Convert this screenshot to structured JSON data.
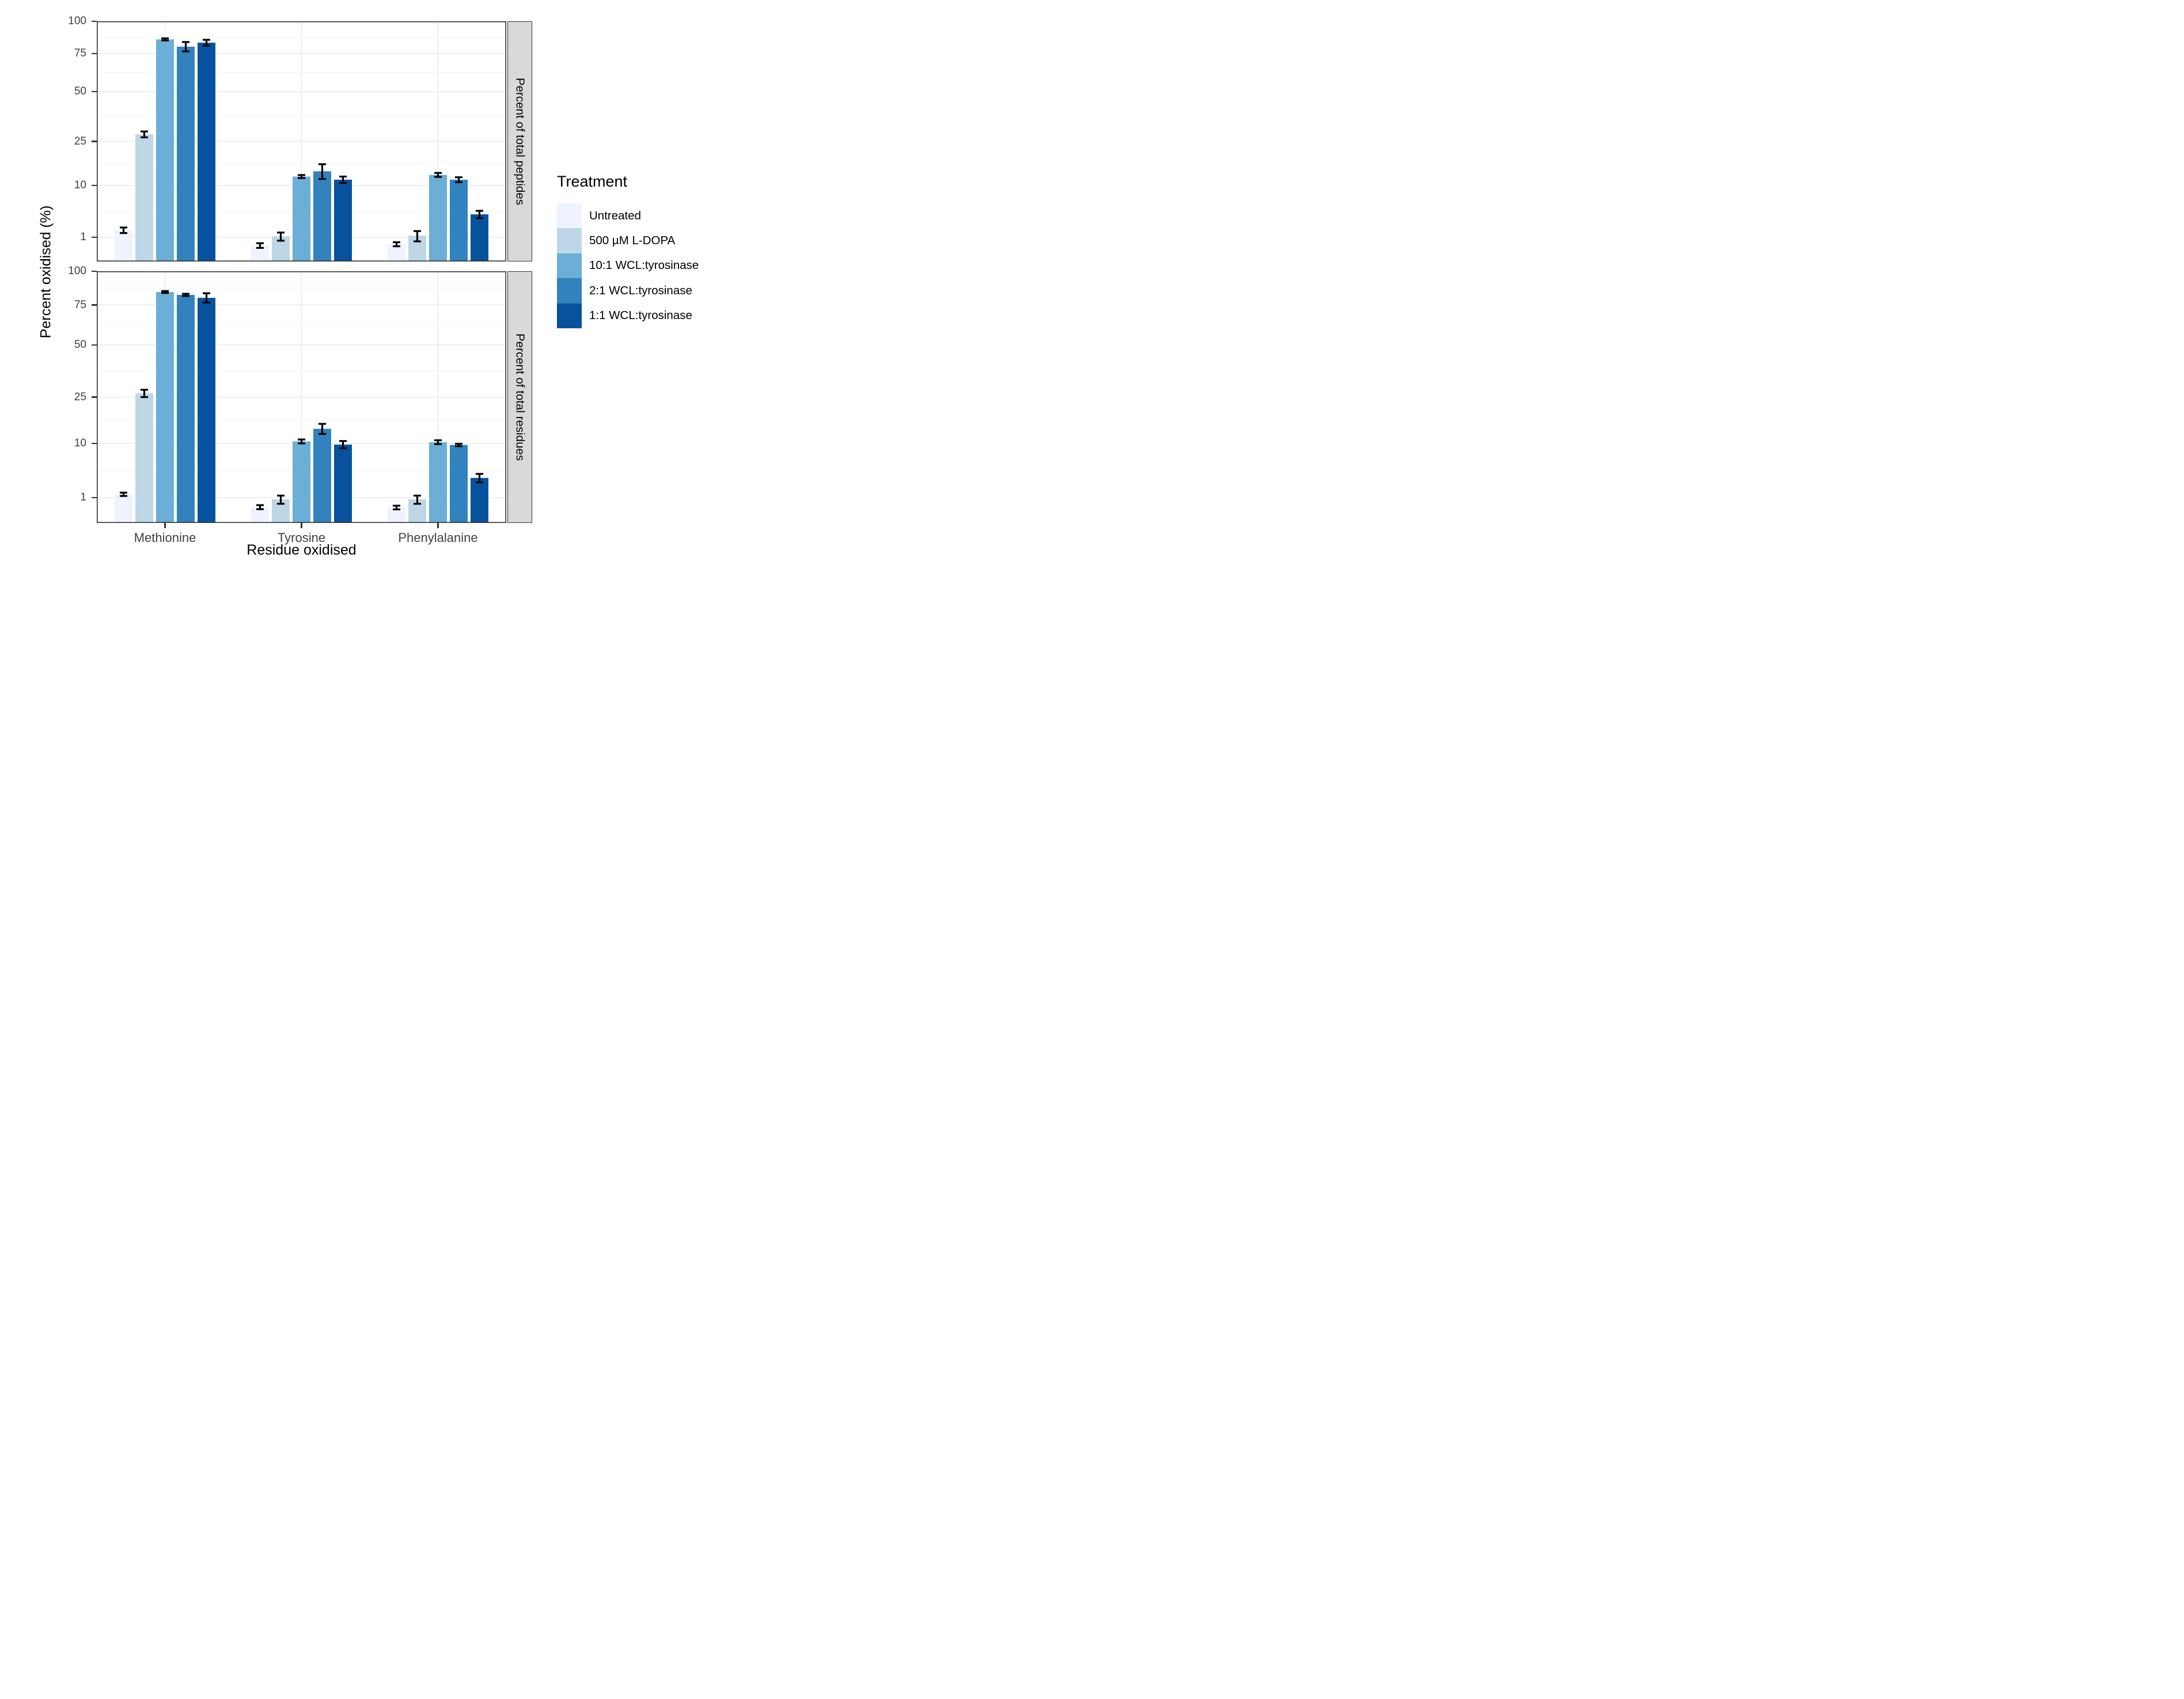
{
  "legend": {
    "title": "Treatment",
    "items": [
      {
        "label": "Untreated",
        "color": "#EFF3FF"
      },
      {
        "label": "500 µM L-DOPA",
        "color": "#BDD7E7"
      },
      {
        "label": "10:1 WCL:tyrosinase",
        "color": "#6BAED6"
      },
      {
        "label": "2:1 WCL:tyrosinase",
        "color": "#3182BD"
      },
      {
        "label": "1:1 WCL:tyrosinase",
        "color": "#08519C"
      }
    ]
  },
  "axes": {
    "x_title": "Residue oxidised",
    "y_title": "Percent oxidised (%)",
    "y_scale": "sqrt",
    "y_limits": [
      0,
      100
    ],
    "y_major_ticks": [
      100,
      75,
      50,
      25,
      10,
      1
    ],
    "y_minor_gridlines": [
      87.1,
      61.9,
      36.4,
      16.7,
      4.3
    ],
    "categories": [
      "Methionine",
      "Tyrosine",
      "Phenylalanine"
    ]
  },
  "style": {
    "grid_major_color": "#EBEBEB",
    "grid_minor_color": "#F4F4F4",
    "panel_border_color": "#333333",
    "strip_background": "#D9D9D9",
    "axis_text_color": "#404040",
    "error_bar_color": "#000000"
  },
  "chart_data": [
    {
      "type": "bar",
      "facet_label": "Percent of total peptides",
      "categories": [
        "Methionine",
        "Tyrosine",
        "Phenylalanine"
      ],
      "ylabel": "Percent oxidised (%)",
      "ylim": [
        0,
        100
      ],
      "series": [
        {
          "name": "Untreated",
          "values": [
            1.7,
            0.45,
            0.52
          ],
          "errors": [
            0.3,
            0.13,
            0.12
          ]
        },
        {
          "name": "500 µM L-DOPA",
          "values": [
            28,
            1.1,
            1.15
          ],
          "errors": [
            1.3,
            0.35,
            0.45
          ]
        },
        {
          "name": "10:1 WCL:tyrosinase",
          "values": [
            85.5,
            12.5,
            13.0
          ],
          "errors": [
            0.8,
            0.45,
            0.6
          ]
        },
        {
          "name": "2:1 WCL:tyrosinase",
          "values": [
            80.0,
            14.1,
            11.6
          ],
          "errors": [
            3.5,
            2.3,
            0.7
          ]
        },
        {
          "name": "1:1 WCL:tyrosinase",
          "values": [
            83.0,
            11.6,
            3.85
          ],
          "errors": [
            2.2,
            0.9,
            0.6
          ]
        }
      ]
    },
    {
      "type": "bar",
      "facet_label": "Percent of total residues",
      "categories": [
        "Methionine",
        "Tyrosine",
        "Phenylalanine"
      ],
      "ylabel": "Percent oxidised (%)",
      "ylim": [
        0,
        100
      ],
      "series": [
        {
          "name": "Untreated",
          "values": [
            1.3,
            0.4,
            0.38
          ],
          "errors": [
            0.15,
            0.1,
            0.09
          ]
        },
        {
          "name": "500 µM L-DOPA",
          "values": [
            26.5,
            0.88,
            0.88
          ],
          "errors": [
            1.5,
            0.3,
            0.3
          ]
        },
        {
          "name": "10:1 WCL:tyrosinase",
          "values": [
            84.2,
            10.5,
            10.3
          ],
          "errors": [
            0.7,
            0.5,
            0.5
          ]
        },
        {
          "name": "2:1 WCL:tyrosinase",
          "values": [
            82.1,
            14.0,
            9.6
          ],
          "errors": [
            0.8,
            1.5,
            0.3
          ]
        },
        {
          "name": "1:1 WCL:tyrosinase",
          "values": [
            80.0,
            9.7,
            3.2
          ],
          "errors": [
            3.3,
            0.9,
            0.6
          ]
        }
      ]
    }
  ]
}
